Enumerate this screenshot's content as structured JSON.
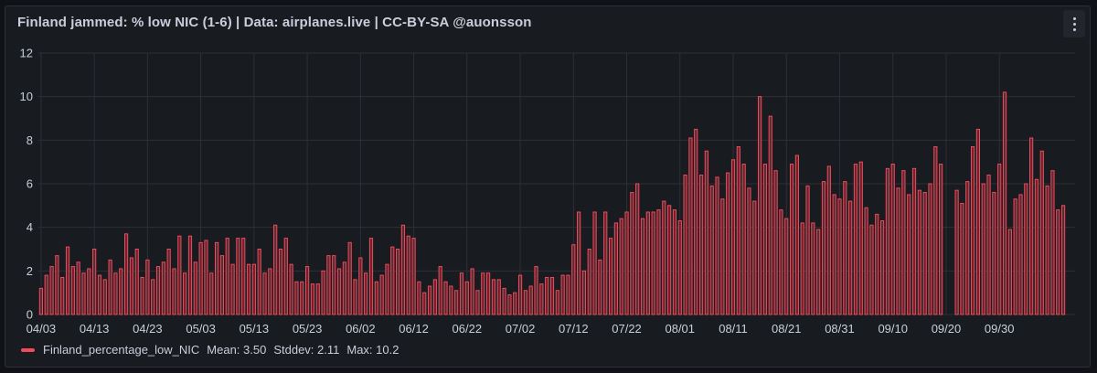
{
  "panel": {
    "title": "Finland jammed: % low NIC (1-6) | Data: airplanes.live | CC-BY-SA @auonsson",
    "menu_icon": "vertical-ellipsis-icon"
  },
  "legend": {
    "series_name": "Finland_percentage_low_NIC",
    "mean": "Mean: 3.50",
    "stddev": "Stddev: 2.11",
    "max": "Max: 10.2"
  },
  "colors": {
    "bar_stroke": "#f2495c",
    "bar_fill": "#5c2a30",
    "grid": "#2c3036",
    "panel_bg": "#181b1f"
  },
  "chart_data": {
    "type": "bar",
    "title": "Finland jammed: % low NIC (1-6) | Data: airplanes.live | CC-BY-SA @auonsson",
    "xlabel": "",
    "ylabel": "",
    "ylim": [
      0,
      12
    ],
    "yticks": [
      "0",
      "2",
      "4",
      "6",
      "8",
      "10",
      "12"
    ],
    "xtick_labels": [
      "04/03",
      "04/13",
      "04/23",
      "05/03",
      "05/13",
      "05/23",
      "06/02",
      "06/12",
      "06/22",
      "07/02",
      "07/12",
      "07/22",
      "08/01",
      "08/11",
      "08/21",
      "08/31",
      "09/10",
      "09/20",
      "09/30"
    ],
    "x_start": "04/03",
    "x_end": "09/30",
    "grid": true,
    "legend_position": "bottom-left",
    "series": [
      {
        "name": "Finland_percentage_low_NIC",
        "values": [
          1.2,
          1.8,
          2.2,
          2.7,
          1.7,
          3.1,
          2.2,
          2.4,
          1.9,
          2.1,
          3.0,
          1.8,
          1.6,
          2.5,
          1.9,
          2.1,
          3.7,
          2.6,
          3.0,
          1.7,
          2.5,
          1.6,
          2.2,
          2.4,
          3.0,
          2.1,
          3.6,
          1.9,
          3.6,
          2.4,
          3.3,
          3.4,
          1.9,
          3.3,
          2.7,
          3.5,
          2.3,
          3.5,
          3.5,
          2.3,
          2.3,
          3.0,
          1.9,
          2.1,
          4.1,
          3.0,
          3.5,
          2.3,
          1.5,
          1.5,
          2.2,
          1.4,
          1.4,
          2.0,
          2.7,
          2.7,
          2.1,
          2.4,
          3.3,
          1.6,
          2.6,
          1.9,
          3.5,
          1.5,
          1.8,
          2.3,
          3.1,
          3.0,
          4.1,
          3.6,
          3.5,
          1.5,
          1.0,
          1.3,
          1.6,
          2.2,
          1.5,
          1.3,
          1.1,
          1.9,
          1.5,
          2.1,
          1.1,
          1.9,
          1.9,
          1.6,
          1.6,
          1.2,
          0.9,
          1.0,
          1.8,
          1.1,
          1.3,
          2.2,
          1.4,
          1.7,
          1.7,
          1.1,
          1.8,
          1.8,
          3.2,
          4.7,
          2.0,
          3.0,
          4.7,
          2.5,
          4.7,
          3.5,
          4.2,
          4.4,
          4.7,
          5.6,
          6.0,
          4.4,
          4.7,
          4.7,
          4.8,
          5.2,
          5.0,
          4.8,
          4.3,
          6.4,
          8.1,
          8.5,
          6.4,
          7.5,
          5.9,
          6.3,
          5.3,
          6.5,
          7.1,
          7.7,
          6.9,
          5.8,
          5.2,
          10.0,
          6.9,
          9.1,
          6.6,
          4.8,
          4.4,
          6.9,
          7.3,
          4.2,
          5.9,
          4.2,
          3.9,
          6.1,
          6.8,
          5.5,
          5.3,
          6.1,
          5.2,
          6.9,
          7.0,
          4.9,
          4.1,
          4.6,
          4.3,
          6.7,
          6.9,
          5.8,
          6.6,
          5.5,
          6.7,
          5.7,
          5.6,
          6.0,
          7.7,
          6.9,
          0.0,
          0.0,
          5.7,
          5.1,
          6.1,
          7.7,
          8.5,
          6.0,
          6.4,
          5.6,
          6.9,
          10.2,
          3.9,
          5.3,
          5.5,
          6.0,
          8.1,
          6.2,
          7.5,
          5.9,
          6.6,
          4.8,
          5.0
        ]
      }
    ]
  }
}
